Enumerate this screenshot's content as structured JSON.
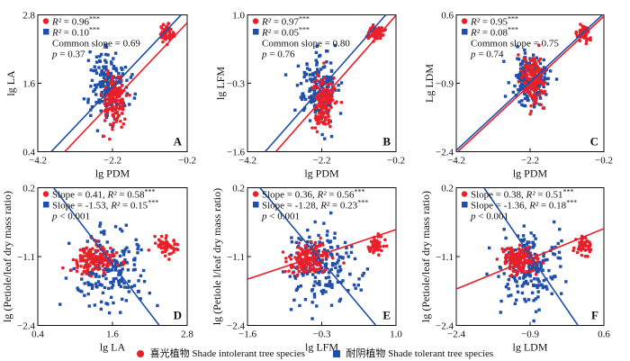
{
  "colors": {
    "red": "#e8202a",
    "blue": "#1f4fa8",
    "axis": "#111111"
  },
  "legend": {
    "items": [
      {
        "label": "喜光植物 Shade intolerant tree species",
        "marker": "circle",
        "color": "#e8202a"
      },
      {
        "label": "耐阴植物 Shade tolerant tree species",
        "marker": "square",
        "color": "#1f4fa8"
      }
    ]
  },
  "chart_data": [
    {
      "type": "scatter",
      "panel_label": "A",
      "xlabel": "lg PDM",
      "ylabel": "lg LA",
      "xlim": [
        -4.2,
        -0.2
      ],
      "ylim": [
        0.4,
        2.8
      ],
      "xticks": [
        "-4.2",
        "-2.2",
        "-0.2"
      ],
      "yticks": [
        "0.4",
        "1.6",
        "2.8"
      ],
      "annotations": [
        "R² = 0.96***",
        "R² = 0.10***",
        "Common slope = 0.69",
        "p = 0.37"
      ],
      "series": [
        {
          "color": "red",
          "marker": "circle",
          "cluster_center": [
            -2.15,
            1.3
          ],
          "cluster_spread": [
            0.15,
            0.22
          ],
          "extra_cluster": [
            -0.75,
            2.45
          ],
          "fit": {
            "slope": 0.69,
            "intercept": 2.8
          }
        },
        {
          "color": "blue",
          "marker": "square",
          "cluster_center": [
            -2.3,
            1.6
          ],
          "cluster_spread": [
            0.25,
            0.3
          ],
          "fit": {
            "slope": 0.69,
            "intercept": 3.05
          }
        }
      ]
    },
    {
      "type": "scatter",
      "panel_label": "B",
      "xlabel": "lg PDM",
      "ylabel": "lg LFM",
      "xlim": [
        -4.2,
        -0.2
      ],
      "ylim": [
        -1.6,
        1.0
      ],
      "xticks": [
        "-4.2",
        "-2.2",
        "-0.2"
      ],
      "yticks": [
        "-1.6",
        "-0.3",
        "1.0"
      ],
      "annotations": [
        "R² = 0.97***",
        "R² = 0.05***",
        "Common slope = 0.80",
        "p = 0.76"
      ],
      "series": [
        {
          "color": "red",
          "marker": "circle",
          "cluster_center": [
            -2.15,
            -0.65
          ],
          "cluster_spread": [
            0.15,
            0.25
          ],
          "extra_cluster": [
            -0.75,
            0.65
          ],
          "fit": {
            "slope": 0.8,
            "intercept": 1.15
          }
        },
        {
          "color": "blue",
          "marker": "square",
          "cluster_center": [
            -2.3,
            -0.35
          ],
          "cluster_spread": [
            0.25,
            0.3
          ],
          "fit": {
            "slope": 0.8,
            "intercept": 1.38
          }
        }
      ]
    },
    {
      "type": "scatter",
      "panel_label": "C",
      "xlabel": "lg PDM",
      "ylabel": "Lg LDM",
      "xlim": [
        -4.2,
        -0.2
      ],
      "ylim": [
        -2.4,
        0.6
      ],
      "xticks": [
        "-4.2",
        "-2.2",
        "-0.2"
      ],
      "yticks": [
        "-2.4",
        "-0.9",
        "0.6"
      ],
      "annotations": [
        "R² = 0.95***",
        "R² = 0.08***",
        "Common slope = 0.75",
        "p = 0.74"
      ],
      "series": [
        {
          "color": "red",
          "marker": "circle",
          "cluster_center": [
            -2.1,
            -0.85
          ],
          "cluster_spread": [
            0.15,
            0.25
          ],
          "extra_cluster": [
            -0.75,
            0.2
          ],
          "fit": {
            "slope": 0.75,
            "intercept": 0.72
          }
        },
        {
          "color": "blue",
          "marker": "square",
          "cluster_center": [
            -2.2,
            -0.85
          ],
          "cluster_spread": [
            0.25,
            0.3
          ],
          "fit": {
            "slope": 0.75,
            "intercept": 0.78
          }
        }
      ]
    },
    {
      "type": "scatter",
      "panel_label": "D",
      "xlabel": "lg LA",
      "ylabel": "lg (Petiole/leaf dry mass ratio)",
      "xlim": [
        0.4,
        2.8
      ],
      "ylim": [
        -2.4,
        0.2
      ],
      "xticks": [
        "0.4",
        "1.6",
        "2.8"
      ],
      "yticks": [
        "-2.4",
        "-1.1",
        "0.2"
      ],
      "annotations": [
        "Slope = 0.41, R² = 0.58***",
        "Slope = -1.53, R² = 0.15***",
        "p < 0.001"
      ],
      "series": [
        {
          "color": "red",
          "marker": "circle",
          "cluster_center": [
            1.3,
            -1.15
          ],
          "cluster_spread": [
            0.18,
            0.12
          ],
          "extra_cluster": [
            2.45,
            -0.9
          ],
          "fit": null
        },
        {
          "color": "blue",
          "marker": "square",
          "cluster_center": [
            1.55,
            -1.3
          ],
          "cluster_spread": [
            0.3,
            0.35
          ],
          "fit": {
            "slope": -1.53,
            "intercept": 1.2
          }
        }
      ]
    },
    {
      "type": "scatter",
      "panel_label": "E",
      "xlabel": "lg LFM",
      "ylabel": "lg (Petiole l/leaf dry mass ratio)",
      "xlim": [
        -1.6,
        1.0
      ],
      "ylim": [
        -2.4,
        0.2
      ],
      "xticks": [
        "-1.6",
        "-0.3",
        "1.0"
      ],
      "yticks": [
        "-2.4",
        "-1.1",
        "0.2"
      ],
      "annotations": [
        "Slope = 0.36, R² = 0.56***",
        "Slope = -1.28, R² = 0.23***",
        "p < 0.001"
      ],
      "series": [
        {
          "color": "red",
          "marker": "circle",
          "cluster_center": [
            -0.55,
            -1.15
          ],
          "cluster_spread": [
            0.18,
            0.12
          ],
          "extra_cluster": [
            0.65,
            -0.9
          ],
          "fit": {
            "slope": 0.36,
            "intercept": -0.95
          }
        },
        {
          "color": "blue",
          "marker": "square",
          "cluster_center": [
            -0.3,
            -1.3
          ],
          "cluster_spread": [
            0.3,
            0.35
          ],
          "fit": {
            "slope": -1.28,
            "intercept": -1.57
          }
        }
      ]
    },
    {
      "type": "scatter",
      "panel_label": "F",
      "xlabel": "lg LDM",
      "ylabel": "lg (Petiole/leaf dry mass ratio)",
      "xlim": [
        -2.4,
        0.6
      ],
      "ylim": [
        -2.4,
        0.2
      ],
      "xticks": [
        "-2.4",
        "-0.9",
        "0.6"
      ],
      "yticks": [
        "-2.4",
        "-1.1",
        "0.2"
      ],
      "annotations": [
        "Slope = 0.38, R² = 0.51***",
        "Slope = -1.36, R² = 0.18***",
        "p < 0.001"
      ],
      "series": [
        {
          "color": "red",
          "marker": "circle",
          "cluster_center": [
            -1.1,
            -1.15
          ],
          "cluster_spread": [
            0.2,
            0.12
          ],
          "extra_cluster": [
            0.2,
            -0.9
          ],
          "fit": {
            "slope": 0.38,
            "intercept": -0.8
          }
        },
        {
          "color": "blue",
          "marker": "square",
          "cluster_center": [
            -0.9,
            -1.3
          ],
          "cluster_spread": [
            0.3,
            0.35
          ],
          "fit": {
            "slope": -1.36,
            "intercept": -2.3
          }
        }
      ]
    }
  ]
}
